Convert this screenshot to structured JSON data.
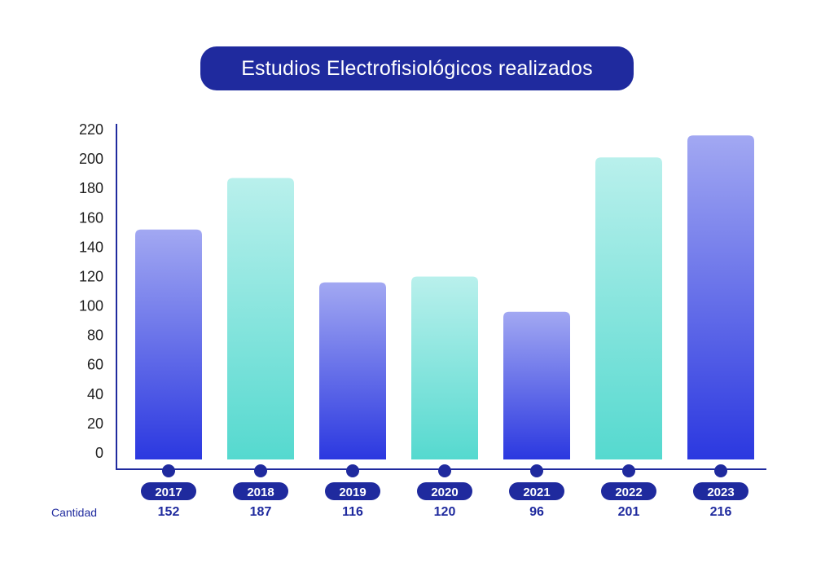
{
  "chart_data": {
    "type": "bar",
    "title": "Estudios Electrofisiológicos realizados",
    "categories": [
      "2017",
      "2018",
      "2019",
      "2020",
      "2021",
      "2022",
      "2023"
    ],
    "values": [
      152,
      187,
      116,
      120,
      96,
      201,
      216
    ],
    "row_label": "Cantidad",
    "ylim": [
      0,
      220
    ],
    "yticks": [
      0,
      20,
      40,
      60,
      80,
      100,
      120,
      140,
      160,
      180,
      200,
      220
    ],
    "grid": false,
    "colors": {
      "axis": "#1f2a9e",
      "pill": "#1f2a9e",
      "blue_top": "#a2a8f2",
      "blue_bottom": "#2b38e0",
      "teal_top": "#b9f0ec",
      "teal_bottom": "#55d9cf"
    }
  }
}
